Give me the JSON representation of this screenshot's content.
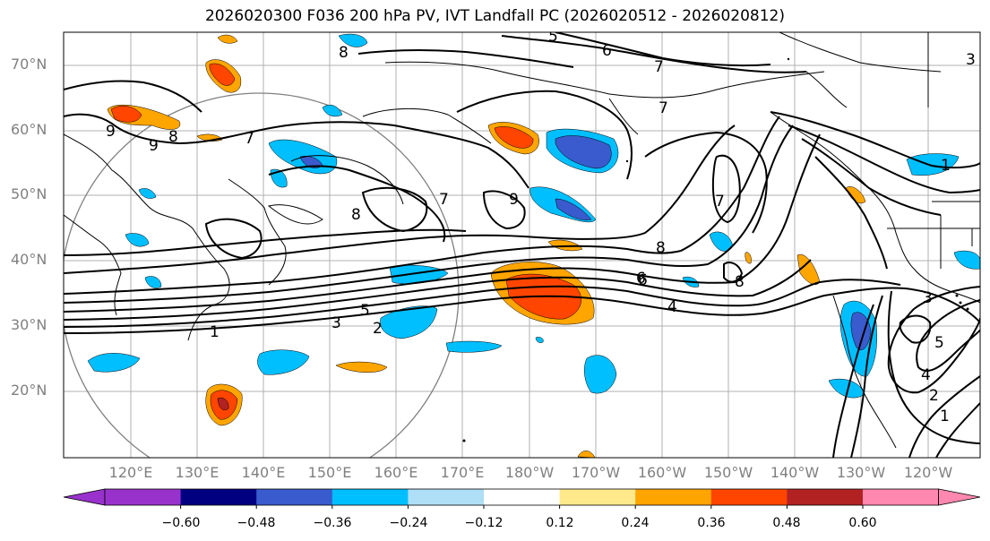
{
  "title": "2026020300 F036 200 hPa PV, IVT Landfall PC (2026020512 - 2026020812)",
  "lat_labels": [
    "70°N",
    "60°N",
    "50°N",
    "40°N",
    "30°N",
    "20°N"
  ],
  "lon_labels": [
    "120°E",
    "130°E",
    "140°E",
    "150°E",
    "160°E",
    "170°E",
    "180°W",
    "170°W",
    "160°W",
    "150°W",
    "140°W",
    "130°W",
    "120°W"
  ],
  "colorbar": {
    "ticks": [
      "−0.60",
      "−0.48",
      "−0.36",
      "−0.24",
      "−0.12",
      "0.12",
      "0.24",
      "0.36",
      "0.48",
      "0.60"
    ],
    "colors": [
      "#9932cc",
      "#000080",
      "#3a5bcd",
      "#00bfff",
      "#aedff7",
      "#ffffff",
      "#ffe98a",
      "#ffa500",
      "#ff4500",
      "#b22222",
      "#ff88b0"
    ]
  },
  "contour_labels": [
    "5",
    "6",
    "7",
    "7",
    "8",
    "9",
    "8",
    "7",
    "7",
    "6",
    "9",
    "7",
    "8",
    "8",
    "8",
    "9",
    "6",
    "5",
    "4",
    "3",
    "2",
    "1",
    "3",
    "5",
    "4",
    "2",
    "1",
    "1",
    "3"
  ]
}
